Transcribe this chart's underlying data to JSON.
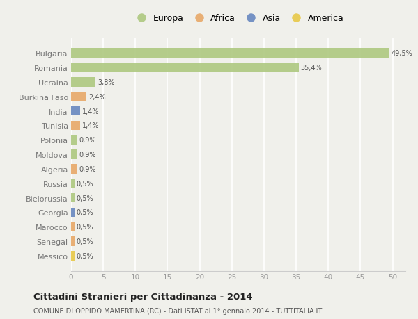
{
  "countries": [
    "Bulgaria",
    "Romania",
    "Ucraina",
    "Burkina Faso",
    "India",
    "Tunisia",
    "Polonia",
    "Moldova",
    "Algeria",
    "Russia",
    "Bielorussia",
    "Georgia",
    "Marocco",
    "Senegal",
    "Messico"
  ],
  "values": [
    49.5,
    35.4,
    3.8,
    2.4,
    1.4,
    1.4,
    0.9,
    0.9,
    0.9,
    0.5,
    0.5,
    0.5,
    0.5,
    0.5,
    0.5
  ],
  "labels": [
    "49,5%",
    "35,4%",
    "3,8%",
    "2,4%",
    "1,4%",
    "1,4%",
    "0,9%",
    "0,9%",
    "0,9%",
    "0,5%",
    "0,5%",
    "0,5%",
    "0,5%",
    "0,5%",
    "0,5%"
  ],
  "bar_colors": [
    "#aec880",
    "#aec880",
    "#aec880",
    "#e8a868",
    "#6888c0",
    "#e8a868",
    "#aec880",
    "#aec880",
    "#e8a868",
    "#aec880",
    "#aec880",
    "#6888c0",
    "#e8a868",
    "#e8a868",
    "#e8c848"
  ],
  "legend_labels": [
    "Europa",
    "Africa",
    "Asia",
    "America"
  ],
  "legend_colors": [
    "#aec880",
    "#e8a868",
    "#6888c0",
    "#e8c848"
  ],
  "title": "Cittadini Stranieri per Cittadinanza - 2014",
  "subtitle": "COMUNE DI OPPIDO MAMERTINA (RC) - Dati ISTAT al 1° gennaio 2014 - TUTTITALIA.IT",
  "xlim": [
    0,
    52
  ],
  "background_color": "#f0f0eb",
  "grid_color": "#ffffff",
  "bar_alpha": 0.9,
  "xticks": [
    0,
    5,
    10,
    15,
    20,
    25,
    30,
    35,
    40,
    45,
    50
  ]
}
